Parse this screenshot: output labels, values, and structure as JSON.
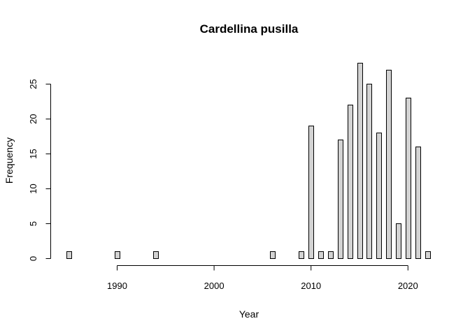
{
  "chart_data": {
    "type": "bar",
    "title": "Cardellina pusilla",
    "xlabel": "Year",
    "ylabel": "Frequency",
    "x": [
      1985,
      1986,
      1987,
      1988,
      1989,
      1990,
      1991,
      1992,
      1993,
      1994,
      1995,
      1996,
      1997,
      1998,
      1999,
      2000,
      2001,
      2002,
      2003,
      2004,
      2005,
      2006,
      2007,
      2008,
      2009,
      2010,
      2011,
      2012,
      2013,
      2014,
      2015,
      2016,
      2017,
      2018,
      2019,
      2020,
      2021,
      2022
    ],
    "values": [
      1,
      0,
      0,
      0,
      0,
      1,
      0,
      0,
      0,
      1,
      0,
      0,
      0,
      0,
      0,
      0,
      0,
      0,
      0,
      0,
      0,
      1,
      0,
      0,
      1,
      19,
      1,
      1,
      17,
      22,
      28,
      25,
      18,
      27,
      5,
      23,
      16,
      1
    ],
    "xlim": [
      1985,
      2022
    ],
    "ylim": [
      0,
      28
    ],
    "x_ticks": [
      "1990",
      "2000",
      "2010",
      "2020"
    ],
    "y_ticks": [
      "0",
      "5",
      "10",
      "15",
      "20",
      "25"
    ],
    "bar_color": "#d3d3d3",
    "grid": false
  }
}
